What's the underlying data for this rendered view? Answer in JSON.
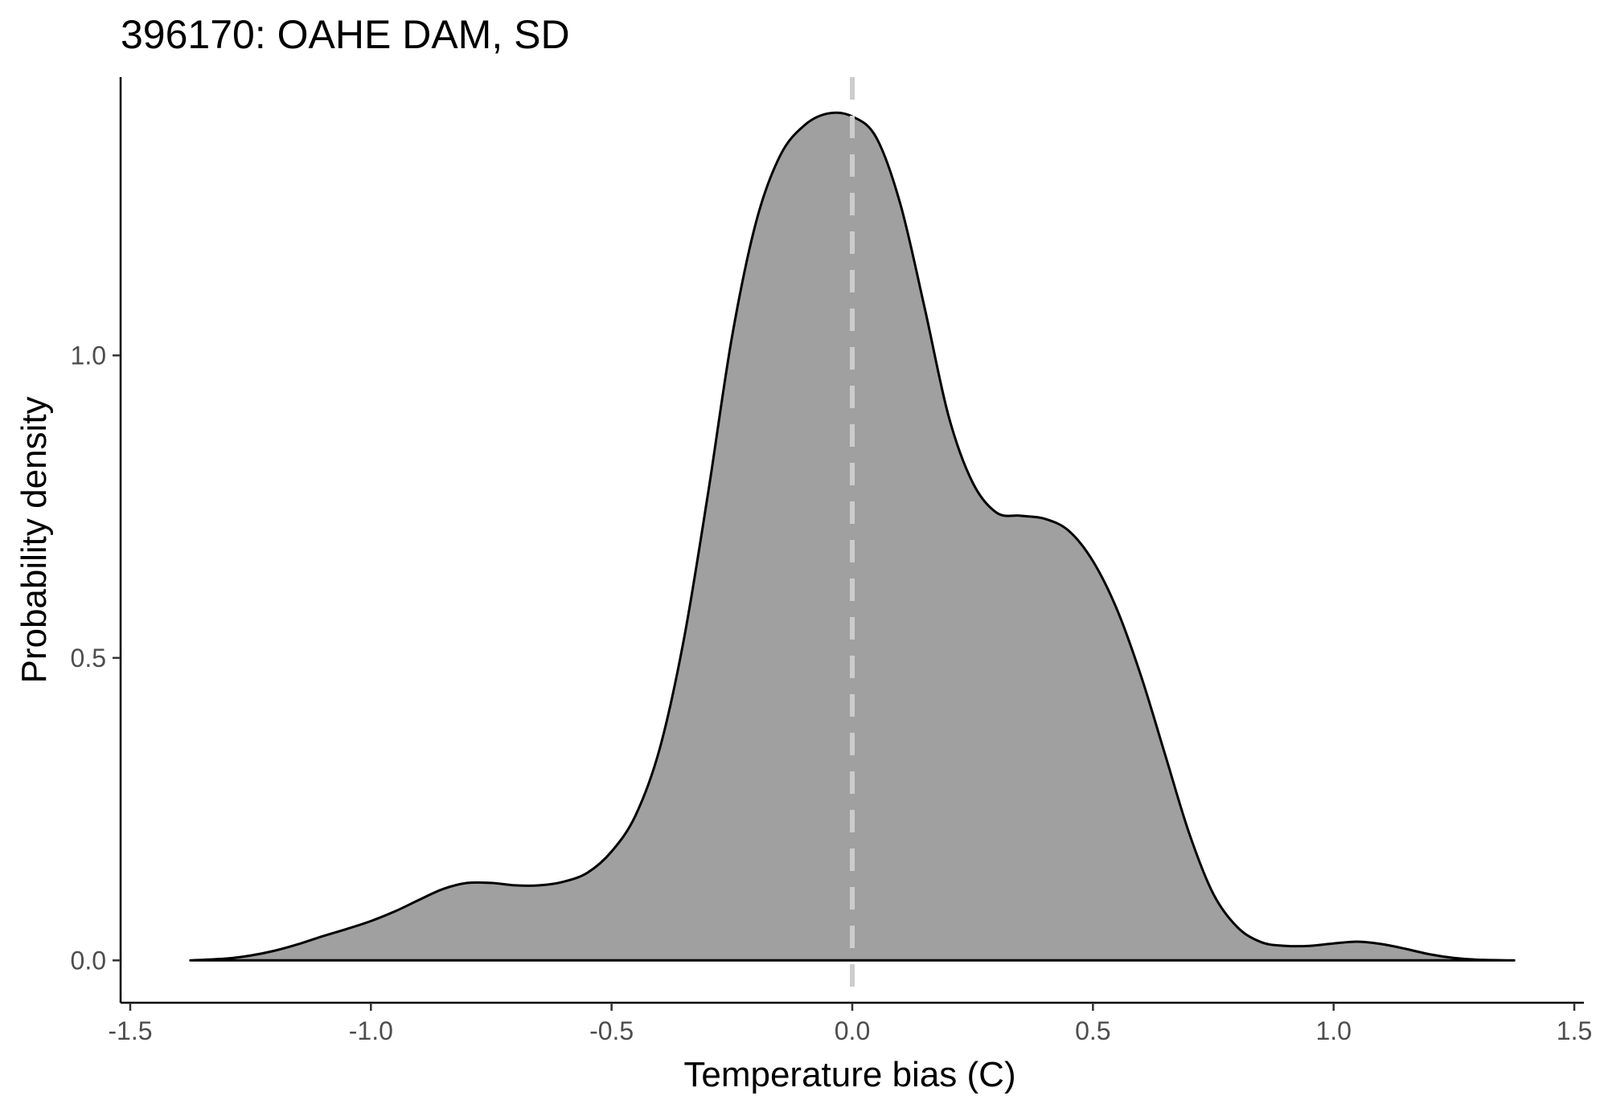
{
  "chart_data": {
    "type": "area",
    "title": "396170: OAHE DAM, SD",
    "xlabel": "Temperature bias (C)",
    "ylabel": "Probability density",
    "xlim": [
      -1.52,
      1.52
    ],
    "ylim": [
      -0.07,
      1.46
    ],
    "x_ticks": [
      -1.5,
      -1.0,
      -0.5,
      0.0,
      0.5,
      1.0,
      1.5
    ],
    "x_tick_labels": [
      "-1.5",
      "-1.0",
      "-0.5",
      "0.0",
      "0.5",
      "1.0",
      "1.5"
    ],
    "y_ticks": [
      0.0,
      0.5,
      1.0
    ],
    "y_tick_labels": [
      "0.0",
      "0.5",
      "1.0"
    ],
    "grid": false,
    "reference_line": {
      "x": 0.0,
      "style": "dashed",
      "color": "#cccccc"
    },
    "fill_color": "#a0a0a0",
    "line_color": "#000000",
    "series": [
      {
        "x": [
          -1.375,
          -1.3,
          -1.25,
          -1.2,
          -1.15,
          -1.1,
          -1.05,
          -1.0,
          -0.95,
          -0.9,
          -0.85,
          -0.8,
          -0.75,
          -0.7,
          -0.65,
          -0.6,
          -0.55,
          -0.5,
          -0.45,
          -0.4,
          -0.35,
          -0.3,
          -0.25,
          -0.2,
          -0.15,
          -0.1,
          -0.05,
          0.0,
          0.05,
          0.1,
          0.15,
          0.2,
          0.25,
          0.3,
          0.35,
          0.4,
          0.45,
          0.5,
          0.55,
          0.6,
          0.65,
          0.7,
          0.75,
          0.8,
          0.85,
          0.9,
          0.95,
          1.0,
          1.05,
          1.1,
          1.15,
          1.2,
          1.25,
          1.3,
          1.375
        ],
        "y": [
          0.0,
          0.003,
          0.008,
          0.016,
          0.027,
          0.04,
          0.052,
          0.065,
          0.081,
          0.1,
          0.118,
          0.128,
          0.128,
          0.124,
          0.124,
          0.13,
          0.145,
          0.18,
          0.24,
          0.35,
          0.53,
          0.77,
          1.03,
          1.22,
          1.33,
          1.38,
          1.4,
          1.395,
          1.36,
          1.25,
          1.08,
          0.9,
          0.79,
          0.74,
          0.735,
          0.73,
          0.71,
          0.66,
          0.58,
          0.47,
          0.34,
          0.21,
          0.11,
          0.055,
          0.03,
          0.024,
          0.024,
          0.028,
          0.031,
          0.027,
          0.019,
          0.01,
          0.004,
          0.001,
          0.0
        ]
      }
    ]
  }
}
